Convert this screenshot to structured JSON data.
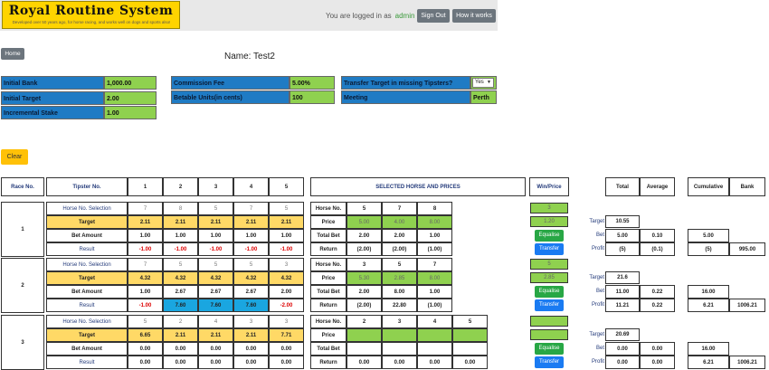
{
  "header": {
    "logo_title": "Royal Routine System",
    "logo_subtitle": "Developed over 50 years ago, for horse racing, and works well on dogs and sports also!",
    "logged_prefix": "You are logged in as",
    "username": "admin",
    "sign_out": "Sign Out",
    "how_it_works": "How it works"
  },
  "home_label": "Home",
  "name_line": "Name: Test2",
  "params": {
    "initial_bank_label": "Initial Bank",
    "initial_bank": "1,000.00",
    "initial_target_label": "Initial Target",
    "initial_target": "2.00",
    "incremental_stake_label": "Incremental Stake",
    "incremental_stake": "1.00",
    "commission_label": "Commission Fee",
    "commission": "5.00%",
    "betable_label": "Betable Units(in cents)",
    "betable": "100",
    "transfer_label": "Transfer Target in missing Tipsters?",
    "transfer_value": "Yes",
    "meeting_label": "Meeting",
    "meeting": "Perth"
  },
  "clear_label": "Clear",
  "table_headers": {
    "race_no": "Race No.",
    "tipster_no": "Tipster No.",
    "tipsters": [
      "1",
      "2",
      "3",
      "4",
      "5"
    ],
    "selected": "SELECTED HORSE AND PRICES",
    "win_price": "Win/Price",
    "total": "Total",
    "average": "Average",
    "cumulative": "Cumulative",
    "bank": "Bank"
  },
  "row_labels": {
    "horse_sel": "Horse No. Selection",
    "target": "Target",
    "bet_amount": "Bet Amount",
    "result": "Result",
    "horse_no": "Horse No.",
    "price": "Price",
    "total_bet": "Total Bet",
    "return": "Return",
    "r_target": "Target",
    "r_bet": "Bet",
    "r_profit": "Profit",
    "equalise": "Equalise",
    "transfer": "Transfer"
  },
  "races": [
    {
      "race_no": "1",
      "selection": [
        "7",
        "8",
        "5",
        "7",
        "5"
      ],
      "target": [
        "2.11",
        "2.11",
        "2.11",
        "2.11",
        "2.11"
      ],
      "bet_amount": [
        "1.00",
        "1.00",
        "1.00",
        "1.00",
        "1.00"
      ],
      "result": [
        "-1.00",
        "-1.00",
        "-1.00",
        "-1.00",
        "-1.00"
      ],
      "horses": [
        "5",
        "7",
        "8"
      ],
      "prices": [
        "5.00",
        "4.00",
        "8.00"
      ],
      "total_bets": [
        "2.00",
        "2.00",
        "1.00"
      ],
      "returns": [
        "(2.00)",
        "(2.00)",
        "(1.00)"
      ],
      "win_horse": "3",
      "win_price": "1.20",
      "total_target": "10.55",
      "total_bet": "5.00",
      "avg_bet": "0.10",
      "total_profit": "(5)",
      "avg_profit": "(0.1)",
      "cum_bet": "5.00",
      "cum_profit": "(5)",
      "bank": "995.00"
    },
    {
      "race_no": "2",
      "selection": [
        "7",
        "5",
        "5",
        "5",
        "3"
      ],
      "target": [
        "4.32",
        "4.32",
        "4.32",
        "4.32",
        "4.32"
      ],
      "bet_amount": [
        "1.00",
        "2.67",
        "2.67",
        "2.67",
        "2.00"
      ],
      "result": [
        "-1.00",
        "7.60",
        "7.60",
        "7.60",
        "-2.00"
      ],
      "horses": [
        "3",
        "5",
        "7"
      ],
      "prices": [
        "5.30",
        "2.85",
        "8.00"
      ],
      "total_bets": [
        "2.00",
        "8.00",
        "1.00"
      ],
      "returns": [
        "(2.00)",
        "22.80",
        "(1.00)"
      ],
      "win_horse": "5",
      "win_price": "2.85",
      "total_target": "21.6",
      "total_bet": "11.00",
      "avg_bet": "0.22",
      "total_profit": "11.21",
      "avg_profit": "0.22",
      "cum_bet": "16.00",
      "cum_profit": "6.21",
      "bank": "1006.21"
    },
    {
      "race_no": "3",
      "selection": [
        "5",
        "2",
        "4",
        "3",
        "3"
      ],
      "target": [
        "6.65",
        "2.11",
        "2.11",
        "2.11",
        "7.71"
      ],
      "bet_amount": [
        "0.00",
        "0.00",
        "0.00",
        "0.00",
        "0.00"
      ],
      "result": [
        "0.00",
        "0.00",
        "0.00",
        "0.00",
        "0.00"
      ],
      "horses": [
        "2",
        "3",
        "4",
        "5"
      ],
      "prices": [
        "",
        "",
        "",
        ""
      ],
      "total_bets": [
        "",
        "",
        "",
        ""
      ],
      "returns": [
        "0.00",
        "0.00",
        "0.00",
        "0.00"
      ],
      "win_horse": "",
      "win_price": "",
      "total_target": "20.69",
      "total_bet": "0.00",
      "avg_bet": "0.00",
      "total_profit": "0.00",
      "avg_profit": "0.00",
      "cum_bet": "16.00",
      "cum_profit": "6.21",
      "bank": "1006.21"
    }
  ]
}
